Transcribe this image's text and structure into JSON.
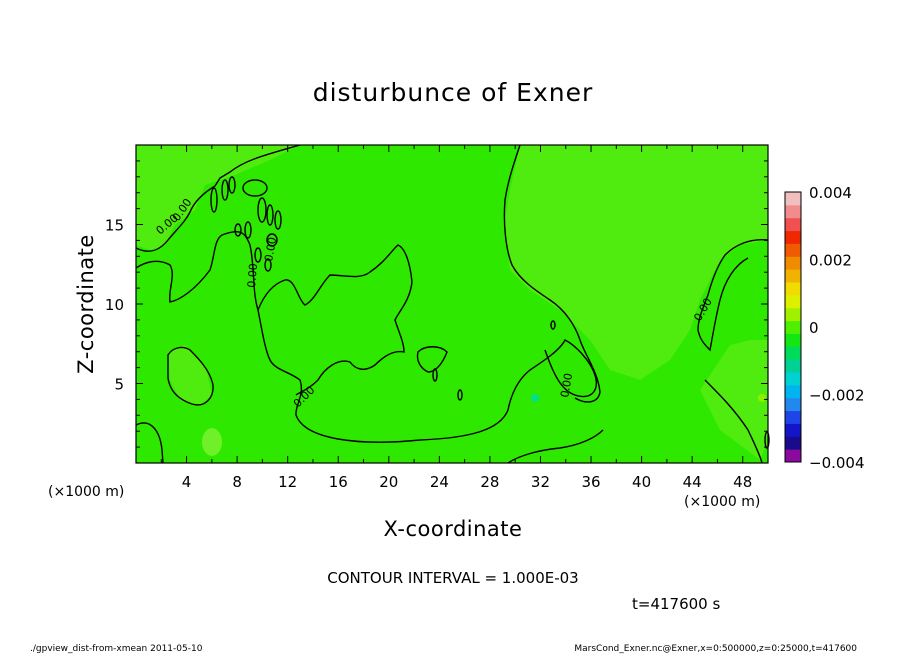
{
  "chart_data": {
    "type": "heatmap",
    "title": "disturbunce of Exner",
    "xlabel": "X-coordinate",
    "ylabel": "Z-coordinate",
    "x_unit": "(×1000 m)",
    "y_unit": "(×1000 m)",
    "xlim": [
      0,
      50
    ],
    "ylim": [
      0,
      20
    ],
    "x_ticks": [
      4,
      8,
      12,
      16,
      20,
      24,
      28,
      32,
      36,
      40,
      44,
      48
    ],
    "y_ticks": [
      5,
      10,
      15
    ],
    "colorbar": {
      "min": -0.004,
      "max": 0.004,
      "tick_labels": [
        "0.004",
        "0.002",
        "0",
        "−0.002",
        "−0.004"
      ],
      "tick_values": [
        0.004,
        0.002,
        0,
        -0.002,
        -0.004
      ],
      "colors": [
        "#8a0aa0",
        "#1a0a8c",
        "#1414c8",
        "#1e46e6",
        "#2288f0",
        "#00b4f0",
        "#00d2d2",
        "#00d296",
        "#00dc5a",
        "#14e614",
        "#4ef000",
        "#a0f000",
        "#dcf000",
        "#f0dc00",
        "#f0b400",
        "#f08c00",
        "#f05a00",
        "#f02800",
        "#f05050",
        "#f08c8c",
        "#f0c0c0"
      ]
    },
    "background_value": 0,
    "contour_interval": "CONTOUR INTERVAL = 1.000E-03",
    "contour_labels": [
      "0.00",
      "0.00",
      "0.00",
      "0.00",
      "0.00",
      "0.00",
      "0.00"
    ]
  },
  "time_label": "t=417600 s",
  "footer_left": "./gpview_dist-from-xmean  2011-05-10",
  "footer_right": "MarsCond_Exner.nc@Exner,x=0:500000,z=0:25000,t=417600"
}
